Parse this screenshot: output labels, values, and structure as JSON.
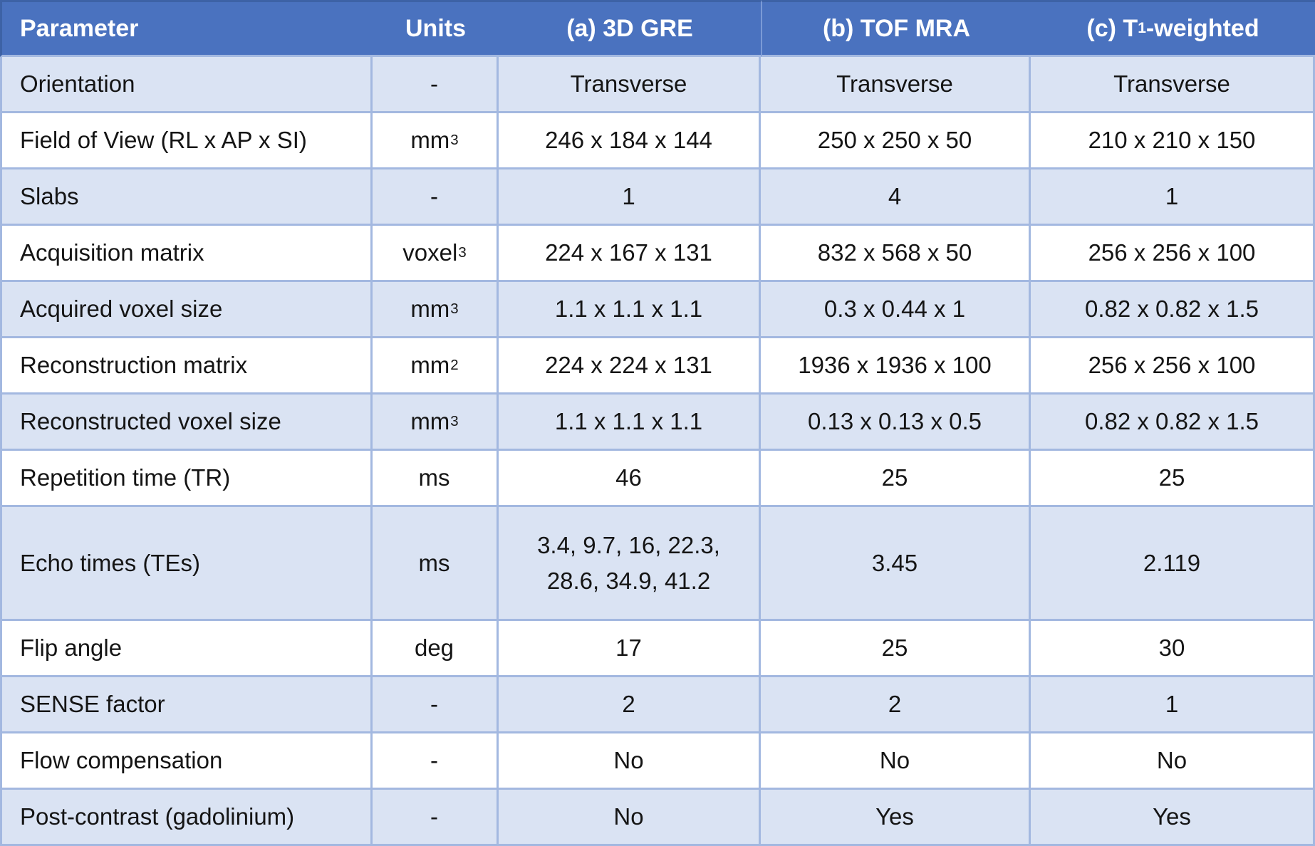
{
  "colors": {
    "header-bg": "#4a72bf",
    "header-text": "#ffffff",
    "header-divider": "#7b9ad6",
    "header-edge": "#3d62a6",
    "row-light": "#dae3f3",
    "row-white": "#ffffff",
    "border": "#a3b8e0",
    "text": "#151515"
  },
  "table": {
    "columns": [
      {
        "id": "parameter",
        "label": "Parameter"
      },
      {
        "id": "units",
        "label": "Units"
      },
      {
        "id": "gre",
        "label": "(a) 3D GRE"
      },
      {
        "id": "tof",
        "label": "(b) TOF MRA"
      },
      {
        "id": "t1w",
        "label_prefix": "(c) T",
        "label_sub": "1",
        "label_suffix": "-weighted"
      }
    ],
    "rows": [
      {
        "param": "Orientation",
        "unit": {
          "base": "-",
          "exp": ""
        },
        "values": [
          "Transverse",
          "Transverse",
          "Transverse"
        ],
        "shade": "light"
      },
      {
        "param": "Field of View (RL x AP x SI)",
        "unit": {
          "base": "mm",
          "exp": "3"
        },
        "values": [
          "246 x 184 x 144",
          "250 x 250 x 50",
          "210 x 210 x 150"
        ],
        "shade": "white"
      },
      {
        "param": "Slabs",
        "unit": {
          "base": "-",
          "exp": ""
        },
        "values": [
          "1",
          "4",
          "1"
        ],
        "shade": "light"
      },
      {
        "param": "Acquisition matrix",
        "unit": {
          "base": "voxel",
          "exp": "3"
        },
        "values": [
          "224 x 167 x 131",
          "832 x 568 x 50",
          "256 x 256 x 100"
        ],
        "shade": "white"
      },
      {
        "param": "Acquired voxel size",
        "unit": {
          "base": "mm",
          "exp": "3"
        },
        "values": [
          "1.1 x 1.1 x 1.1",
          "0.3 x 0.44 x 1",
          "0.82 x 0.82 x 1.5"
        ],
        "shade": "light"
      },
      {
        "param": "Reconstruction matrix",
        "unit": {
          "base": "mm",
          "exp": "2"
        },
        "values": [
          "224 x 224 x 131",
          "1936 x 1936 x 100",
          "256 x 256 x 100"
        ],
        "shade": "white"
      },
      {
        "param": "Reconstructed voxel size",
        "unit": {
          "base": "mm",
          "exp": "3"
        },
        "values": [
          "1.1 x 1.1 x 1.1",
          "0.13 x 0.13 x 0.5",
          "0.82 x 0.82 x 1.5"
        ],
        "shade": "light"
      },
      {
        "param": "Repetition time (TR)",
        "unit": {
          "base": "ms",
          "exp": ""
        },
        "values": [
          "46",
          "25",
          "25"
        ],
        "shade": "white"
      },
      {
        "param": "Echo times (TEs)",
        "unit": {
          "base": "ms",
          "exp": ""
        },
        "values": [
          "3.4, 9.7, 16, 22.3, 28.6, 34.9, 41.2",
          "3.45",
          "2.119"
        ],
        "shade": "light",
        "tall": true
      },
      {
        "param": "Flip angle",
        "unit": {
          "base": "deg",
          "exp": ""
        },
        "values": [
          "17",
          "25",
          "30"
        ],
        "shade": "white"
      },
      {
        "param": "SENSE factor",
        "unit": {
          "base": "-",
          "exp": ""
        },
        "values": [
          "2",
          "2",
          "1"
        ],
        "shade": "light"
      },
      {
        "param": "Flow compensation",
        "unit": {
          "base": "-",
          "exp": ""
        },
        "values": [
          "No",
          "No",
          "No"
        ],
        "shade": "white"
      },
      {
        "param": "Post-contrast (gadolinium)",
        "unit": {
          "base": "-",
          "exp": ""
        },
        "values": [
          "No",
          "Yes",
          "Yes"
        ],
        "shade": "light"
      }
    ]
  }
}
